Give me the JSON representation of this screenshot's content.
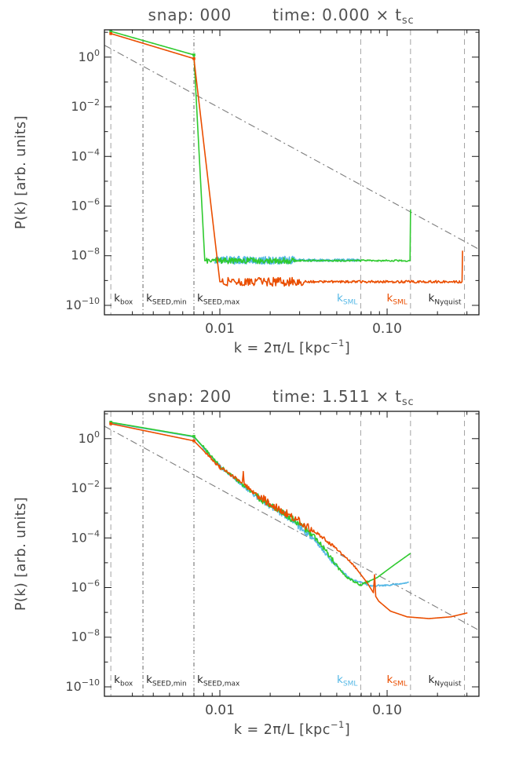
{
  "page": {
    "background": "#ffffff"
  },
  "colors": {
    "frame": "#1b1b1b",
    "axis_text": "#474747",
    "title_text": "#515151",
    "green": "#2fca2f",
    "cyan": "#55b8e6",
    "orange": "#ea4e00",
    "refline_gray": "#7d7d7d",
    "vline_gray": "#a2a2a2",
    "vline_dark": "#666666",
    "klabel_dark": "#2a2a2a"
  },
  "chart_data": [
    {
      "type": "line",
      "title": {
        "left": "snap: 000",
        "right_pre": "time: 0.000 × t",
        "right_sub": "sc"
      },
      "xlabel": {
        "pre": "k = 2π/L [kpc",
        "sup": "−1",
        "post": "]"
      },
      "ylabel": "P(k) [arb. units]",
      "x_axis": {
        "lim_log": [
          -2.69,
          -0.451
        ],
        "major_ticks": [
          {
            "value": 0.01,
            "label": "0.01"
          },
          {
            "value": 0.1,
            "label": "0.10"
          }
        ]
      },
      "y_axis": {
        "lim_log": [
          -10.38,
          1.1
        ],
        "base": "10",
        "major_ticks": [
          {
            "e": 0,
            "exp": "0"
          },
          {
            "e": -2,
            "exp": "−2"
          },
          {
            "e": -4,
            "exp": "−4"
          },
          {
            "e": -6,
            "exp": "−6"
          },
          {
            "e": -8,
            "exp": "−8"
          },
          {
            "e": -10,
            "exp": "−10"
          }
        ]
      },
      "vlines": [
        {
          "k": 0.00223,
          "label": "k",
          "sub": "box",
          "side": "right",
          "line_color": "#a2a2a2",
          "dash": "7,5",
          "label_color": "#2a2a2a"
        },
        {
          "k": 0.00347,
          "label": "k",
          "sub": "SEED,min",
          "side": "right",
          "line_color": "#666666",
          "dash": "5,3,1,3",
          "label_color": "#2a2a2a"
        },
        {
          "k": 0.007,
          "label": "k",
          "sub": "SEED,max",
          "side": "right",
          "line_color": "#666666",
          "dash": "5,3,1,3,1,3",
          "label_color": "#2a2a2a"
        },
        {
          "k": 0.0695,
          "label": "k",
          "sub": "SML",
          "side": "left",
          "line_color": "#a2a2a2",
          "dash": "7,5",
          "label_color": "#55b8e6"
        },
        {
          "k": 0.138,
          "label": "k",
          "sub": "SML",
          "side": "left",
          "line_color": "#a2a2a2",
          "dash": "7,5",
          "label_color": "#ea4e00"
        },
        {
          "k": 0.29,
          "label": "k",
          "sub": "Nyquist",
          "side": "left",
          "line_color": "#a2a2a2",
          "dash": "7,5",
          "label_color": "#2a2a2a"
        }
      ],
      "refline": {
        "p1_log": [
          -2.69,
          0.48
        ],
        "p2_log": [
          -0.451,
          -7.74
        ],
        "dash": "9,4,2,4"
      },
      "series": [
        {
          "name": "cyan",
          "color": "#55b8e6",
          "width": 1.6,
          "seed": 7,
          "anchors_log10": [
            [
              -2.03,
              -8.18
            ],
            [
              -1.158,
              -8.18
            ]
          ],
          "noise": [
            {
              "from": -2.03,
              "to": -1.55,
              "amp": 0.16
            },
            {
              "from": -1.55,
              "to": -1.16,
              "amp": 0.05
            }
          ]
        },
        {
          "name": "green",
          "color": "#2fca2f",
          "width": 1.6,
          "seed": 3,
          "marker_anchors": [
            0,
            1
          ],
          "anchors_log10": [
            [
              -2.652,
              1.04
            ],
            [
              -2.155,
              0.09
            ],
            [
              -2.09,
              -8.2
            ],
            [
              -0.863,
              -8.2
            ],
            [
              -0.86,
              -6.15
            ]
          ],
          "noise": [
            {
              "from": -2.08,
              "to": -1.55,
              "amp": 0.12
            },
            {
              "from": -1.55,
              "to": -0.868,
              "amp": 0.035
            }
          ]
        },
        {
          "name": "orange",
          "color": "#ea4e00",
          "width": 1.6,
          "seed": 11,
          "marker_anchors": [
            0,
            1
          ],
          "anchors_log10": [
            [
              -2.652,
              0.95
            ],
            [
              -2.155,
              -0.06
            ],
            [
              -2.0,
              -9.05
            ],
            [
              -0.552,
              -9.05
            ],
            [
              -0.549,
              -7.8
            ]
          ],
          "noise": [
            {
              "from": -1.99,
              "to": -1.5,
              "amp": 0.18
            },
            {
              "from": -1.5,
              "to": -0.556,
              "amp": 0.05
            }
          ]
        }
      ]
    },
    {
      "type": "line",
      "title": {
        "left": "snap: 200",
        "right_pre": "time: 1.511 × t",
        "right_sub": "sc"
      },
      "xlabel": {
        "pre": "k = 2π/L [kpc",
        "sup": "−1",
        "post": "]"
      },
      "ylabel": "P(k) [arb. units]",
      "x_axis": {
        "lim_log": [
          -2.69,
          -0.451
        ],
        "major_ticks": [
          {
            "value": 0.01,
            "label": "0.01"
          },
          {
            "value": 0.1,
            "label": "0.10"
          }
        ]
      },
      "y_axis": {
        "lim_log": [
          -10.38,
          1.1
        ],
        "base": "10",
        "major_ticks": [
          {
            "e": 0,
            "exp": "0"
          },
          {
            "e": -2,
            "exp": "−2"
          },
          {
            "e": -4,
            "exp": "−4"
          },
          {
            "e": -6,
            "exp": "−6"
          },
          {
            "e": -8,
            "exp": "−8"
          },
          {
            "e": -10,
            "exp": "−10"
          }
        ]
      },
      "vlines": [
        {
          "k": 0.00223,
          "label": "k",
          "sub": "box",
          "side": "right",
          "line_color": "#a2a2a2",
          "dash": "7,5",
          "label_color": "#2a2a2a"
        },
        {
          "k": 0.00347,
          "label": "k",
          "sub": "SEED,min",
          "side": "right",
          "line_color": "#666666",
          "dash": "5,3,1,3",
          "label_color": "#2a2a2a"
        },
        {
          "k": 0.007,
          "label": "k",
          "sub": "SEED,max",
          "side": "right",
          "line_color": "#666666",
          "dash": "5,3,1,3,1,3",
          "label_color": "#2a2a2a"
        },
        {
          "k": 0.0695,
          "label": "k",
          "sub": "SML",
          "side": "left",
          "line_color": "#a2a2a2",
          "dash": "7,5",
          "label_color": "#55b8e6"
        },
        {
          "k": 0.138,
          "label": "k",
          "sub": "SML",
          "side": "left",
          "line_color": "#a2a2a2",
          "dash": "7,5",
          "label_color": "#ea4e00"
        },
        {
          "k": 0.29,
          "label": "k",
          "sub": "Nyquist",
          "side": "left",
          "line_color": "#a2a2a2",
          "dash": "7,5",
          "label_color": "#2a2a2a"
        }
      ],
      "refline": {
        "p1_log": [
          -2.69,
          0.5
        ],
        "p2_log": [
          -0.451,
          -7.72
        ],
        "dash": "9,4,2,4"
      },
      "series": [
        {
          "name": "cyan",
          "color": "#55b8e6",
          "width": 1.6,
          "seed": 17,
          "anchors_log10": [
            [
              -2.652,
              0.64
            ],
            [
              -2.155,
              0.07
            ],
            [
              -2.0,
              -1.12
            ],
            [
              -1.8,
              -2.25
            ],
            [
              -1.6,
              -3.12
            ],
            [
              -1.45,
              -3.95
            ],
            [
              -1.33,
              -4.95
            ],
            [
              -1.22,
              -5.65
            ],
            [
              -1.1,
              -5.93
            ],
            [
              -0.98,
              -5.9
            ],
            [
              -0.87,
              -5.78
            ]
          ],
          "noise": [
            {
              "from": -2.1,
              "to": -1.78,
              "amp": 0.07
            },
            {
              "from": -1.78,
              "to": -1.45,
              "amp": 0.14
            },
            {
              "from": -1.45,
              "to": -1.28,
              "amp": 0.07
            },
            {
              "from": -1.28,
              "to": -0.88,
              "amp": 0.03
            }
          ]
        },
        {
          "name": "green",
          "color": "#2fca2f",
          "width": 1.6,
          "seed": 5,
          "marker_anchors": [
            0,
            1
          ],
          "anchors_log10": [
            [
              -2.652,
              0.66
            ],
            [
              -2.155,
              0.09
            ],
            [
              -2.0,
              -1.1
            ],
            [
              -1.9,
              -1.65
            ],
            [
              -1.8,
              -2.2
            ],
            [
              -1.7,
              -2.7
            ],
            [
              -1.6,
              -3.08
            ],
            [
              -1.5,
              -3.55
            ],
            [
              -1.42,
              -4.05
            ],
            [
              -1.33,
              -4.85
            ],
            [
              -1.25,
              -5.55
            ],
            [
              -1.16,
              -5.9
            ],
            [
              -1.06,
              -5.6
            ],
            [
              -0.96,
              -5.1
            ],
            [
              -0.86,
              -4.62
            ]
          ],
          "noise": [
            {
              "from": -2.1,
              "to": -1.78,
              "amp": 0.07
            },
            {
              "from": -1.78,
              "to": -1.45,
              "amp": 0.14
            },
            {
              "from": -1.45,
              "to": -1.28,
              "amp": 0.09
            },
            {
              "from": -1.28,
              "to": -1.1,
              "amp": 0.04
            }
          ]
        },
        {
          "name": "orange",
          "color": "#ea4e00",
          "width": 1.6,
          "seed": 13,
          "marker_anchors": [
            0,
            1
          ],
          "anchors_log10": [
            [
              -2.652,
              0.6
            ],
            [
              -2.155,
              -0.09
            ],
            [
              -2.0,
              -1.15
            ],
            [
              -1.9,
              -1.6
            ],
            [
              -1.8,
              -2.15
            ],
            [
              -1.7,
              -2.62
            ],
            [
              -1.6,
              -3.0
            ],
            [
              -1.5,
              -3.45
            ],
            [
              -1.4,
              -3.9
            ],
            [
              -1.3,
              -4.45
            ],
            [
              -1.2,
              -5.1
            ],
            [
              -1.12,
              -5.8
            ],
            [
              -1.05,
              -6.55
            ],
            [
              -0.98,
              -6.95
            ],
            [
              -0.88,
              -7.18
            ],
            [
              -0.75,
              -7.25
            ],
            [
              -0.62,
              -7.18
            ],
            [
              -0.52,
              -7.02
            ]
          ],
          "noise": [
            {
              "from": -2.1,
              "to": -1.78,
              "amp": 0.08
            },
            {
              "from": -1.78,
              "to": -1.45,
              "amp": 0.16
            },
            {
              "from": -1.45,
              "to": -1.3,
              "amp": 0.07
            },
            {
              "from": -1.3,
              "to": -1.18,
              "amp": 0.04
            }
          ],
          "spikes": [
            {
              "logk": -1.86,
              "amp": 0.5,
              "w": 0.006
            },
            {
              "logk": -1.075,
              "amp": 0.8,
              "w": 0.007
            }
          ]
        }
      ]
    }
  ]
}
